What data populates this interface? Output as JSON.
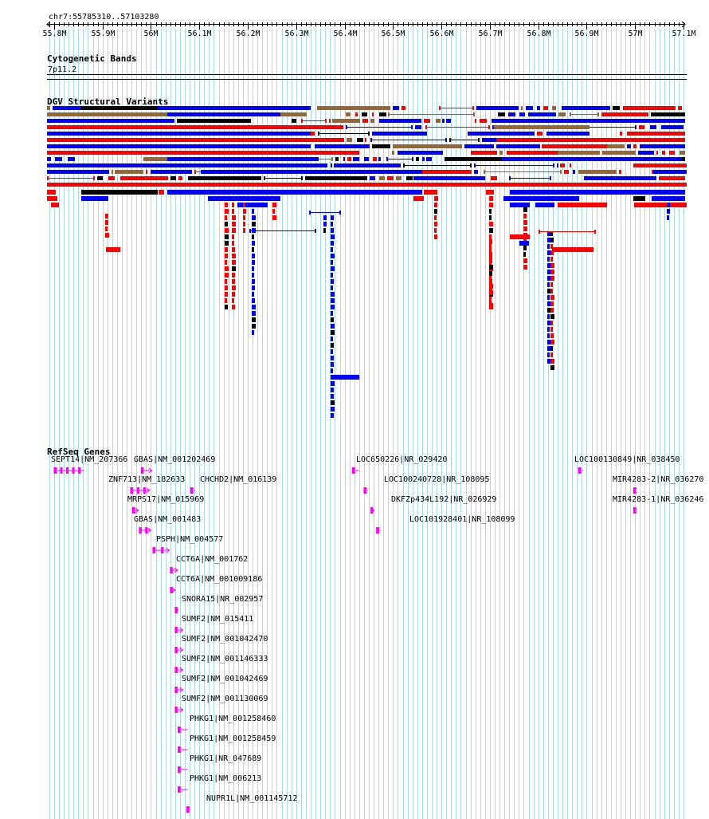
{
  "region": "chr7:55785310..57103280",
  "axis": {
    "start": 55785310,
    "end": 57103280,
    "ticks": [
      {
        "value": 55800000,
        "label": "55.8M"
      },
      {
        "value": 55900000,
        "label": "55.9M"
      },
      {
        "value": 56000000,
        "label": "56M"
      },
      {
        "value": 56100000,
        "label": "56.1M"
      },
      {
        "value": 56200000,
        "label": "56.2M"
      },
      {
        "value": 56300000,
        "label": "56.3M"
      },
      {
        "value": 56400000,
        "label": "56.4M"
      },
      {
        "value": 56500000,
        "label": "56.5M"
      },
      {
        "value": 56600000,
        "label": "56.6M"
      },
      {
        "value": 56700000,
        "label": "56.7M"
      },
      {
        "value": 56800000,
        "label": "56.8M"
      },
      {
        "value": 56900000,
        "label": "56.9M"
      },
      {
        "value": 57000000,
        "label": "57M"
      },
      {
        "value": 57100000,
        "label": "57.1M"
      }
    ]
  },
  "tracks": {
    "cytobands": {
      "title": "Cytogenetic Bands",
      "band_label": "7p11.2"
    },
    "dgv": {
      "title": "DGV Structural Variants"
    },
    "refseq": {
      "title": "RefSeq Genes"
    }
  },
  "colors": {
    "gain": "#ff0000",
    "loss": "#0000ff",
    "inversion": "#996633",
    "complex": "#000000",
    "gene": "#ff00ff",
    "grid": "#add8e6"
  },
  "genes": [
    {
      "label": "SEPT14|NM_207366",
      "start": 55800000,
      "end": 55862000,
      "strand": "-"
    },
    {
      "label": "GBAS|NM_001202469",
      "start": 55980000,
      "end": 56002000,
      "strand": "+"
    },
    {
      "label": "LOC650226|NR_029420",
      "start": 56416000,
      "end": 56430000,
      "strand": "-"
    },
    {
      "label": "LOC100130849|NR_038450",
      "start": 56883000,
      "end": 56893000,
      "strand": "-"
    },
    {
      "label": "ZNF713|NM_182633",
      "start": 55958000,
      "end": 55997000,
      "strand": "+"
    },
    {
      "label": "CHCHD2|NM_016139",
      "start": 56082000,
      "end": 56092000,
      "strand": "-"
    },
    {
      "label": "LOC100240728|NR_108095",
      "start": 56440000,
      "end": 56448000,
      "strand": "-"
    },
    {
      "label": "MIR4283-2|NR_036270",
      "start": 56997000,
      "end": 57000000,
      "strand": "-"
    },
    {
      "label": "MRPS17|NM_015969",
      "start": 55962000,
      "end": 55974000,
      "strand": "+"
    },
    {
      "label": "DKFZp434L192|NR_026929",
      "start": 56454000,
      "end": 56461000,
      "strand": "+"
    },
    {
      "label": "MIR4283-1|NR_036246",
      "start": 56997000,
      "end": 57000000,
      "strand": "-"
    },
    {
      "label": "GBAS|NM_001483",
      "start": 55976000,
      "end": 56000000,
      "strand": "+"
    },
    {
      "label": "LOC101928401|NR_108099",
      "start": 56466000,
      "end": 56474000,
      "strand": "-"
    },
    {
      "label": "PSPH|NM_004577",
      "start": 56004000,
      "end": 56038000,
      "strand": "+"
    },
    {
      "label": "CCT6A|NM_001762",
      "start": 56040000,
      "end": 56055000,
      "strand": "+"
    },
    {
      "label": "CCT6A|NM_001009186",
      "start": 56040000,
      "end": 56050000,
      "strand": "+"
    },
    {
      "label": "SNORA15|NR_002957",
      "start": 56050000,
      "end": 56056000,
      "strand": "+"
    },
    {
      "label": "SUMF2|NM_015411",
      "start": 56050000,
      "end": 56066000,
      "strand": "+"
    },
    {
      "label": "SUMF2|NM_001042470",
      "start": 56050000,
      "end": 56066000,
      "strand": "+"
    },
    {
      "label": "SUMF2|NM_001146333",
      "start": 56050000,
      "end": 56066000,
      "strand": "+"
    },
    {
      "label": "SUMF2|NM_001042469",
      "start": 56050000,
      "end": 56066000,
      "strand": "+"
    },
    {
      "label": "SUMF2|NM_001130069",
      "start": 56050000,
      "end": 56066000,
      "strand": "+"
    },
    {
      "label": "PHKG1|NM_001258460",
      "start": 56056000,
      "end": 56076000,
      "strand": "-"
    },
    {
      "label": "PHKG1|NM_001258459",
      "start": 56056000,
      "end": 56076000,
      "strand": "-"
    },
    {
      "label": "PHKG1|NR_047689",
      "start": 56056000,
      "end": 56076000,
      "strand": "-"
    },
    {
      "label": "PHKG1|NM_006213",
      "start": 56056000,
      "end": 56076000,
      "strand": "-"
    },
    {
      "label": "NUPR1L|NM_001145712",
      "start": 56074000,
      "end": 56082000,
      "strand": "-"
    }
  ]
}
